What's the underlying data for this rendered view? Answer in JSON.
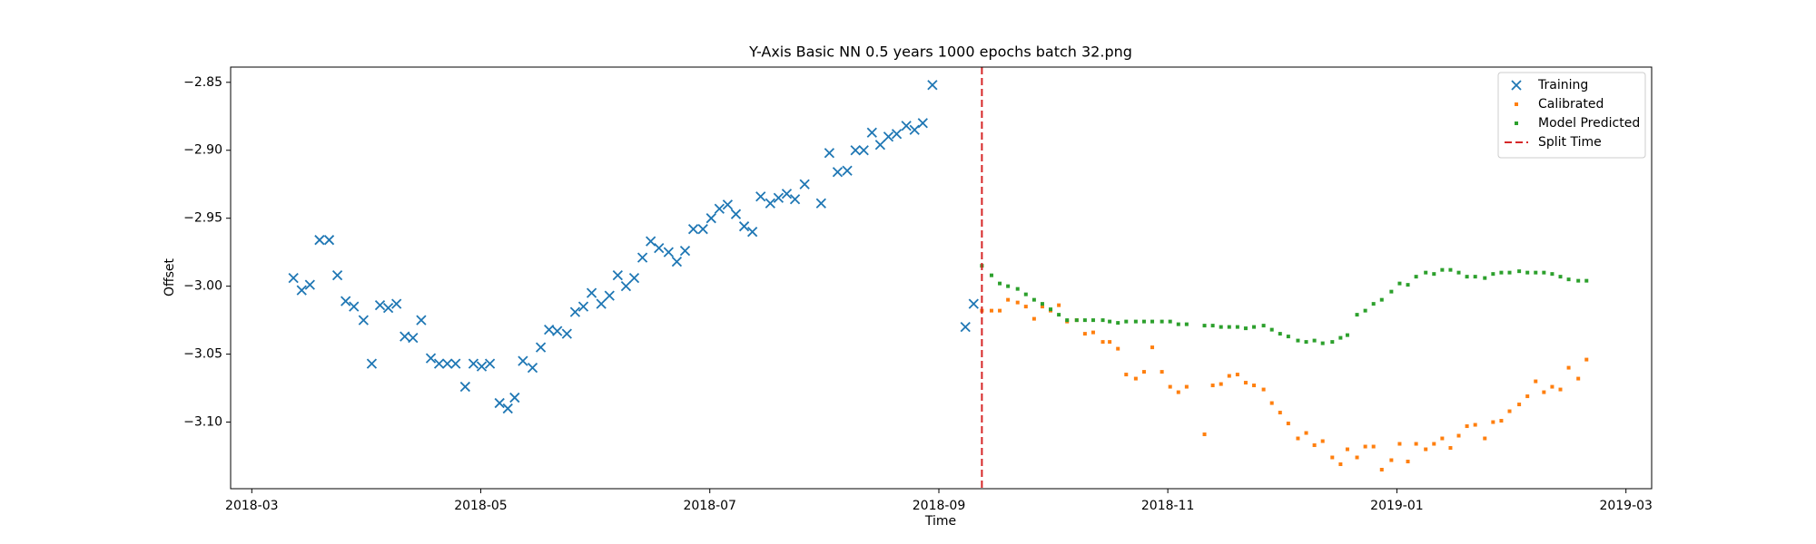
{
  "chart_data": {
    "type": "scatter",
    "title": "Y-Axis Basic NN 0.5 years 1000 epochs batch 32.png",
    "xlabel": "Time",
    "ylabel": "Offset",
    "xlim": [
      2018.1513,
      2019.1854
    ],
    "ylim": [
      -3.149,
      -2.8388
    ],
    "xticks": [
      {
        "value": 2018.1667,
        "label": "2018-03"
      },
      {
        "value": 2018.3333,
        "label": "2018-05"
      },
      {
        "value": 2018.5,
        "label": "2018-07"
      },
      {
        "value": 2018.6667,
        "label": "2018-09"
      },
      {
        "value": 2018.8333,
        "label": "2018-11"
      },
      {
        "value": 2019.0,
        "label": "2019-01"
      },
      {
        "value": 2019.1667,
        "label": "2019-03"
      }
    ],
    "yticks": [
      {
        "value": -2.85,
        "label": "−2.85"
      },
      {
        "value": -2.9,
        "label": "−2.90"
      },
      {
        "value": -2.95,
        "label": "−2.95"
      },
      {
        "value": -3.0,
        "label": "−3.00"
      },
      {
        "value": -3.05,
        "label": "−3.05"
      },
      {
        "value": -3.1,
        "label": "−3.10"
      }
    ],
    "legend": "upper right",
    "series": [
      {
        "name": "Training",
        "color": "#1f77b4",
        "marker": "x",
        "x": [
          2018.197,
          2018.203,
          2018.209,
          2018.216,
          2018.223,
          2018.229,
          2018.235,
          2018.241,
          2018.248,
          2018.254,
          2018.26,
          2018.266,
          2018.272,
          2018.278,
          2018.284,
          2018.29,
          2018.297,
          2018.303,
          2018.309,
          2018.315,
          2018.322,
          2018.328,
          2018.334,
          2018.34,
          2018.347,
          2018.353,
          2018.358,
          2018.364,
          2018.371,
          2018.377,
          2018.383,
          2018.389,
          2018.396,
          2018.402,
          2018.408,
          2018.414,
          2018.421,
          2018.427,
          2018.433,
          2018.439,
          2018.445,
          2018.451,
          2018.457,
          2018.463,
          2018.47,
          2018.476,
          2018.482,
          2018.488,
          2018.495,
          2018.501,
          2018.507,
          2018.513,
          2018.519,
          2018.525,
          2018.531,
          2018.537,
          2018.544,
          2018.55,
          2018.556,
          2018.562,
          2018.569,
          2018.581,
          2018.587,
          2018.593,
          2018.6,
          2018.606,
          2018.612,
          2018.618,
          2018.624,
          2018.63,
          2018.636,
          2018.643,
          2018.649,
          2018.655,
          2018.662,
          2018.686,
          2018.692
        ],
        "values": [
          -2.994,
          -3.003,
          -2.999,
          -2.966,
          -2.966,
          -2.992,
          -3.011,
          -3.015,
          -3.025,
          -3.057,
          -3.014,
          -3.016,
          -3.013,
          -3.037,
          -3.038,
          -3.025,
          -3.053,
          -3.057,
          -3.057,
          -3.057,
          -3.074,
          -3.057,
          -3.059,
          -3.057,
          -3.086,
          -3.09,
          -3.082,
          -3.055,
          -3.06,
          -3.045,
          -3.032,
          -3.033,
          -3.035,
          -3.019,
          -3.015,
          -3.005,
          -3.013,
          -3.007,
          -2.992,
          -3.0,
          -2.994,
          -2.979,
          -2.967,
          -2.972,
          -2.975,
          -2.982,
          -2.974,
          -2.958,
          -2.958,
          -2.95,
          -2.943,
          -2.94,
          -2.947,
          -2.956,
          -2.96,
          -2.934,
          -2.939,
          -2.935,
          -2.932,
          -2.936,
          -2.925,
          -2.939,
          -2.902,
          -2.916,
          -2.915,
          -2.9,
          -2.9,
          -2.887,
          -2.896,
          -2.89,
          -2.888,
          -2.882,
          -2.885,
          -2.88,
          -2.852,
          -3.03,
          -3.013
        ]
      },
      {
        "name": "Calibrated",
        "color": "#ff7f0e",
        "marker": "dot",
        "x": [
          2018.698,
          2018.705,
          2018.711,
          2018.717,
          2018.724,
          2018.73,
          2018.736,
          2018.742,
          2018.748,
          2018.754,
          2018.76,
          2018.767,
          2018.773,
          2018.779,
          2018.786,
          2018.791,
          2018.797,
          2018.803,
          2018.81,
          2018.816,
          2018.822,
          2018.829,
          2018.835,
          2018.841,
          2018.847,
          2018.86,
          2018.866,
          2018.872,
          2018.878,
          2018.884,
          2018.89,
          2018.896,
          2018.903,
          2018.909,
          2018.915,
          2018.921,
          2018.928,
          2018.934,
          2018.94,
          2018.946,
          2018.953,
          2018.959,
          2018.964,
          2018.971,
          2018.977,
          2018.983,
          2018.989,
          2018.996,
          2019.002,
          2019.008,
          2019.014,
          2019.021,
          2019.027,
          2019.033,
          2019.039,
          2019.045,
          2019.051,
          2019.057,
          2019.064,
          2019.07,
          2019.076,
          2019.082,
          2019.089,
          2019.095,
          2019.101,
          2019.107,
          2019.113,
          2019.119,
          2019.125,
          2019.132,
          2019.138
        ],
        "values": [
          -3.018,
          -3.018,
          -3.018,
          -3.01,
          -3.012,
          -3.015,
          -3.024,
          -3.015,
          -3.018,
          -3.014,
          -3.026,
          -3.025,
          -3.035,
          -3.034,
          -3.041,
          -3.041,
          -3.046,
          -3.065,
          -3.068,
          -3.063,
          -3.045,
          -3.063,
          -3.074,
          -3.078,
          -3.074,
          -3.109,
          -3.073,
          -3.072,
          -3.066,
          -3.065,
          -3.071,
          -3.073,
          -3.076,
          -3.086,
          -3.093,
          -3.101,
          -3.112,
          -3.108,
          -3.117,
          -3.114,
          -3.126,
          -3.131,
          -3.12,
          -3.126,
          -3.118,
          -3.118,
          -3.135,
          -3.128,
          -3.116,
          -3.129,
          -3.116,
          -3.12,
          -3.116,
          -3.112,
          -3.119,
          -3.11,
          -3.103,
          -3.102,
          -3.112,
          -3.1,
          -3.099,
          -3.092,
          -3.087,
          -3.081,
          -3.07,
          -3.078,
          -3.074,
          -3.076,
          -3.06,
          -3.068,
          -3.054
        ]
      },
      {
        "name": "Model Predicted",
        "color": "#2ca02c",
        "marker": "dot",
        "x": [
          2018.698,
          2018.705,
          2018.711,
          2018.717,
          2018.724,
          2018.73,
          2018.736,
          2018.742,
          2018.748,
          2018.754,
          2018.76,
          2018.767,
          2018.773,
          2018.779,
          2018.786,
          2018.791,
          2018.797,
          2018.803,
          2018.81,
          2018.816,
          2018.822,
          2018.829,
          2018.835,
          2018.841,
          2018.847,
          2018.86,
          2018.866,
          2018.872,
          2018.878,
          2018.884,
          2018.89,
          2018.896,
          2018.903,
          2018.909,
          2018.915,
          2018.921,
          2018.928,
          2018.934,
          2018.94,
          2018.946,
          2018.953,
          2018.959,
          2018.964,
          2018.971,
          2018.977,
          2018.983,
          2018.989,
          2018.996,
          2019.002,
          2019.008,
          2019.014,
          2019.021,
          2019.027,
          2019.033,
          2019.039,
          2019.045,
          2019.051,
          2019.057,
          2019.064,
          2019.07,
          2019.076,
          2019.082,
          2019.089,
          2019.095,
          2019.101,
          2019.107,
          2019.113,
          2019.119,
          2019.125,
          2019.132,
          2019.138
        ],
        "values": [
          -2.985,
          -2.992,
          -2.998,
          -3.0,
          -3.002,
          -3.006,
          -3.01,
          -3.013,
          -3.017,
          -3.021,
          -3.025,
          -3.025,
          -3.025,
          -3.025,
          -3.025,
          -3.026,
          -3.027,
          -3.026,
          -3.026,
          -3.026,
          -3.026,
          -3.026,
          -3.026,
          -3.028,
          -3.028,
          -3.029,
          -3.029,
          -3.03,
          -3.03,
          -3.03,
          -3.031,
          -3.03,
          -3.029,
          -3.032,
          -3.035,
          -3.037,
          -3.04,
          -3.041,
          -3.04,
          -3.042,
          -3.041,
          -3.038,
          -3.036,
          -3.021,
          -3.018,
          -3.013,
          -3.01,
          -3.004,
          -2.998,
          -2.999,
          -2.993,
          -2.99,
          -2.991,
          -2.988,
          -2.988,
          -2.99,
          -2.993,
          -2.993,
          -2.994,
          -2.991,
          -2.99,
          -2.99,
          -2.989,
          -2.99,
          -2.99,
          -2.99,
          -2.991,
          -2.993,
          -2.995,
          -2.996,
          -2.996
        ]
      }
    ],
    "split": {
      "name": "Split Time",
      "x": 2018.698,
      "color": "#d62728",
      "style": "dashed"
    }
  }
}
